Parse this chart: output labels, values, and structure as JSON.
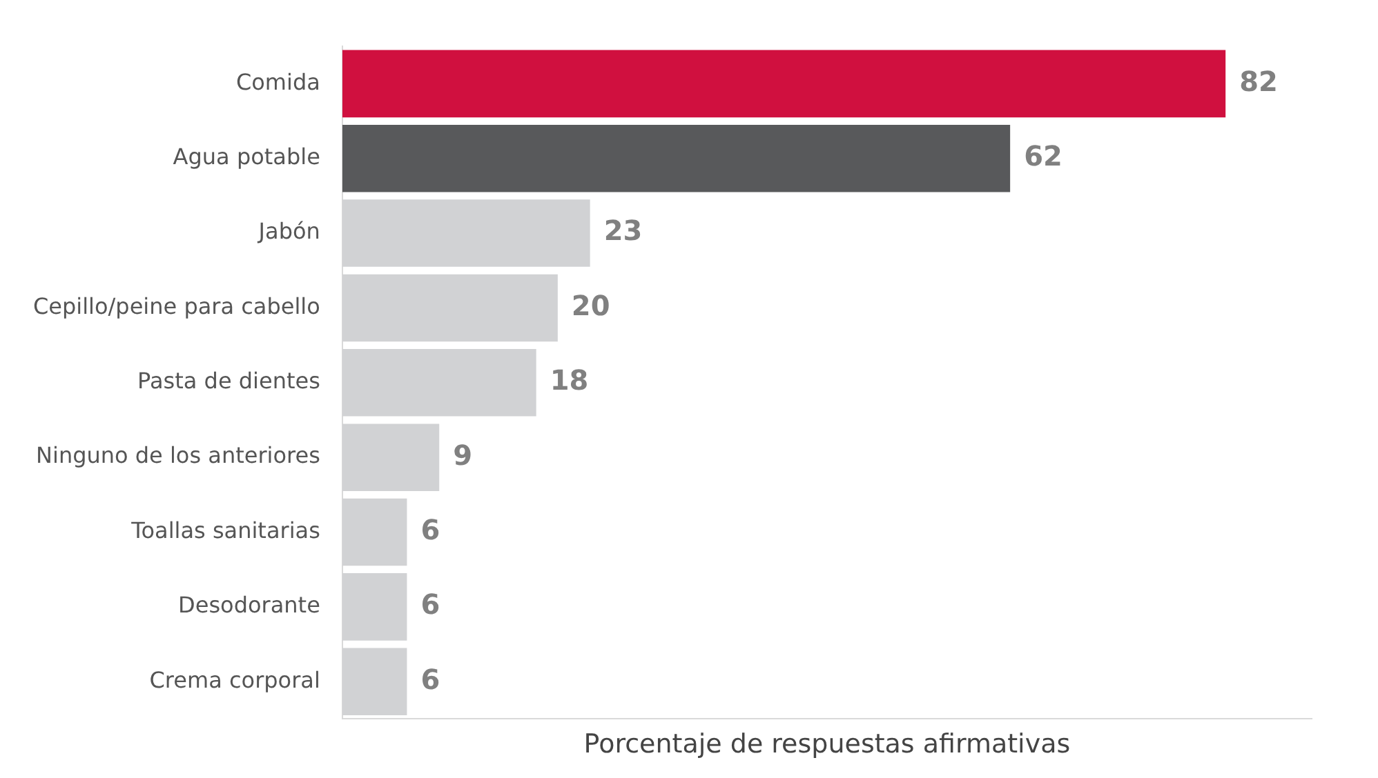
{
  "chart_data": {
    "type": "bar",
    "orientation": "horizontal",
    "xlabel": "Porcentaje de respuestas afirmativas",
    "categories": [
      "Comida",
      "Agua potable",
      "Jabón",
      "Cepillo/peine para cabello",
      "Pasta de dientes",
      "Ninguno de los anteriores",
      "Toallas sanitarias",
      "Desodorante",
      "Crema corporal"
    ],
    "values": [
      82,
      62,
      23,
      20,
      18,
      9,
      6,
      6,
      6
    ],
    "colors": [
      "#d0103f",
      "#58595b",
      "#d1d2d4",
      "#d1d2d4",
      "#d1d2d4",
      "#d1d2d4",
      "#d1d2d4",
      "#d1d2d4",
      "#d1d2d4"
    ],
    "data_labels": true,
    "grid": false,
    "legend": false
  }
}
